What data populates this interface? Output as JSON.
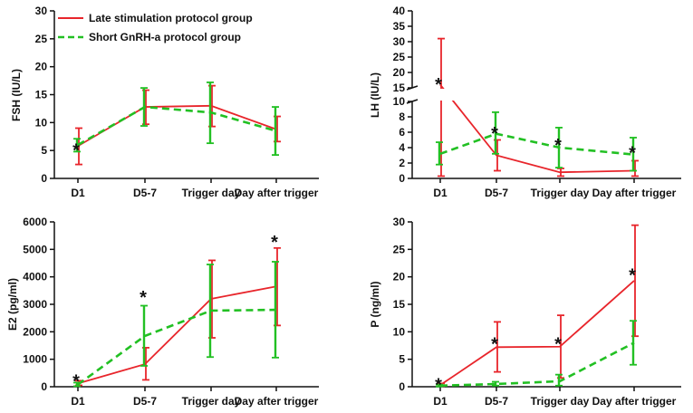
{
  "colors": {
    "red": "#e8252b",
    "green": "#22c023",
    "axis": "#111111"
  },
  "legend": {
    "red_label": "Late stimulation protocol group",
    "green_label": "Short GnRH-a protocol group",
    "placement": "top-left of FSH panel"
  },
  "chart_data": [
    {
      "id": "fsh",
      "type": "line",
      "title": "",
      "ylabel": "FSH (IU/L)",
      "xlabel": "",
      "categories": [
        "D1",
        "D5-7",
        "Trigger day",
        "Day after trigger"
      ],
      "ylim": [
        0,
        30
      ],
      "yticks": [
        0,
        5,
        10,
        15,
        20,
        25,
        30
      ],
      "series": [
        {
          "name": "Late stimulation protocol group",
          "color": "red",
          "dashed": false,
          "values": [
            5.8,
            12.8,
            13.0,
            8.8
          ],
          "err_low": [
            2.5,
            9.7,
            9.3,
            6.6
          ],
          "err_high": [
            9.0,
            15.8,
            16.6,
            11.1
          ]
        },
        {
          "name": "Short GnRH-a protocol group",
          "color": "green",
          "dashed": true,
          "values": [
            6.0,
            12.8,
            11.8,
            8.5
          ],
          "err_low": [
            4.8,
            9.4,
            6.3,
            4.2
          ],
          "err_high": [
            7.1,
            16.2,
            17.2,
            12.8
          ]
        }
      ],
      "stars": [
        {
          "category": 0,
          "y": 5.3
        }
      ]
    },
    {
      "id": "lh",
      "type": "line",
      "title": "",
      "ylabel": "LH (IU/L)",
      "xlabel": "",
      "categories": [
        "D1",
        "D5-7",
        "Trigger day",
        "Day after trigger"
      ],
      "ylim": [
        0,
        40
      ],
      "axis_break": [
        10,
        15
      ],
      "yticks": [
        0,
        2,
        4,
        6,
        8,
        10,
        15,
        20,
        25,
        30,
        35,
        40
      ],
      "series": [
        {
          "name": "Late stimulation protocol group",
          "color": "red",
          "dashed": false,
          "values": [
            16.0,
            3.0,
            0.8,
            1.0
          ],
          "err_low": [
            0.3,
            1.0,
            0.3,
            0.3
          ],
          "err_high": [
            31.0,
            5.0,
            1.3,
            2.3
          ]
        },
        {
          "name": "Short GnRH-a protocol group",
          "color": "green",
          "dashed": true,
          "values": [
            3.2,
            5.8,
            4.0,
            3.1
          ],
          "err_low": [
            1.8,
            3.2,
            1.4,
            1.0
          ],
          "err_high": [
            4.7,
            8.6,
            6.6,
            5.3
          ]
        }
      ],
      "stars": [
        {
          "category": 0,
          "y": 16.5
        },
        {
          "category": 1,
          "y": 6.0
        },
        {
          "category": 2,
          "y": 4.5
        },
        {
          "category": 3,
          "y": 3.5
        }
      ]
    },
    {
      "id": "e2",
      "type": "line",
      "title": "",
      "ylabel": "E2 (pg/ml)",
      "xlabel": "",
      "categories": [
        "D1",
        "D5-7",
        "Trigger day",
        "Day after trigger"
      ],
      "ylim": [
        0,
        6000
      ],
      "yticks": [
        0,
        1000,
        2000,
        3000,
        4000,
        5000,
        6000
      ],
      "series": [
        {
          "name": "Late stimulation protocol group",
          "color": "red",
          "dashed": false,
          "values": [
            120,
            820,
            3200,
            3650
          ],
          "err_low": [
            50,
            250,
            1780,
            2230
          ],
          "err_high": [
            220,
            1420,
            4600,
            5050
          ]
        },
        {
          "name": "Short GnRH-a protocol group",
          "color": "green",
          "dashed": true,
          "values": [
            80,
            1850,
            2770,
            2800
          ],
          "err_low": [
            20,
            760,
            1080,
            1060
          ],
          "err_high": [
            150,
            2950,
            4450,
            4550
          ]
        }
      ],
      "stars": [
        {
          "category": 0,
          "y": 250
        },
        {
          "category": 1,
          "y": 3300
        },
        {
          "category": 3,
          "y": 5300
        }
      ]
    },
    {
      "id": "p",
      "type": "line",
      "title": "",
      "ylabel": "P (ng/ml)",
      "xlabel": "",
      "categories": [
        "D1",
        "D5-7",
        "Trigger day",
        "Day after trigger"
      ],
      "ylim": [
        0,
        30
      ],
      "yticks": [
        0,
        5,
        10,
        15,
        20,
        25,
        30
      ],
      "series": [
        {
          "name": "Late stimulation protocol group",
          "color": "red",
          "dashed": false,
          "values": [
            0.3,
            7.2,
            7.3,
            19.3
          ],
          "err_low": [
            0.1,
            2.7,
            1.6,
            9.2
          ],
          "err_high": [
            0.6,
            11.8,
            13.0,
            29.4
          ]
        },
        {
          "name": "Short GnRH-a protocol group",
          "color": "green",
          "dashed": true,
          "values": [
            0.2,
            0.5,
            1.0,
            8.0
          ],
          "err_low": [
            0.05,
            0.2,
            0.2,
            4.0
          ],
          "err_high": [
            0.4,
            0.9,
            2.2,
            12.0
          ]
        }
      ],
      "stars": [
        {
          "category": 0,
          "y": 0.6
        },
        {
          "category": 1,
          "y": 8.0
        },
        {
          "category": 2,
          "y": 8.0
        },
        {
          "category": 3,
          "y": 20.5
        }
      ]
    }
  ]
}
